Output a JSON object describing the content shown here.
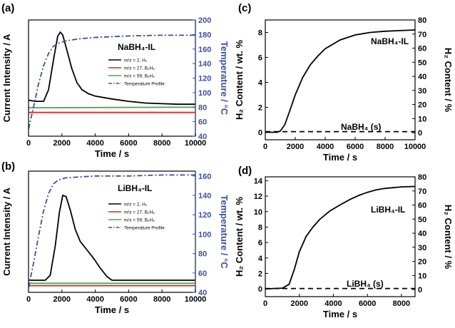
{
  "figure": {
    "background": "#ffffff",
    "axis_color": "#000000",
    "right_axis_color": "#3a4fa8"
  },
  "chart_data": [
    {
      "panel_label": "(a)",
      "type": "line",
      "title": "NaBH₄-IL",
      "xlabel": "Time / s",
      "ylabel": "Current Intensity / A",
      "y2label": "Temperature / °C",
      "xlim": [
        0,
        10000
      ],
      "xticks": [
        "0",
        "2000",
        "4000",
        "6000",
        "8000",
        "10000"
      ],
      "ylim": [
        0,
        1
      ],
      "y2lim": [
        40,
        200
      ],
      "y2ticks": [
        "40",
        "60",
        "80",
        "100",
        "120",
        "140",
        "160",
        "180",
        "200"
      ],
      "legend_position": "top-right",
      "series": [
        {
          "name": "m/z = 2, H₂",
          "color": "#000000",
          "dash": "solid",
          "axis": "left",
          "x": [
            0,
            400,
            900,
            1200,
            1500,
            1750,
            1900,
            2050,
            2300,
            2600,
            2900,
            3200,
            3600,
            4000,
            5000,
            6000,
            7000,
            8000,
            9000,
            10000
          ],
          "y": [
            0.31,
            0.3,
            0.3,
            0.4,
            0.66,
            0.86,
            0.895,
            0.87,
            0.74,
            0.58,
            0.46,
            0.4,
            0.365,
            0.345,
            0.32,
            0.3,
            0.285,
            0.28,
            0.275,
            0.275
          ]
        },
        {
          "name": "m/z = 27, B₂H₆",
          "color": "#e0201c",
          "dash": "solid",
          "axis": "left",
          "x": [
            0,
            10000
          ],
          "y": [
            0.205,
            0.205
          ]
        },
        {
          "name": "m/z = 59, B₅H₉",
          "color": "#3cb43c",
          "dash": "solid",
          "axis": "left",
          "x": [
            0,
            10000
          ],
          "y": [
            0.245,
            0.25
          ]
        },
        {
          "name": "Temperature Profile",
          "color": "#3a4fa8",
          "dash": "dashdot",
          "axis": "right",
          "x": [
            0,
            300,
            600,
            900,
            1200,
            1500,
            1800,
            2200,
            3000,
            4000,
            6000,
            8000,
            10000
          ],
          "y": [
            50,
            80,
            112,
            137,
            154,
            164,
            168,
            171,
            174,
            176,
            178,
            179,
            179
          ]
        }
      ]
    },
    {
      "panel_label": "(b)",
      "type": "line",
      "title": "LiBH₄-IL",
      "xlabel": "Time / s",
      "ylabel": "Current Intensity / A",
      "y2label": "Temperature / °C",
      "xlim": [
        0,
        10000
      ],
      "xticks": [
        "0",
        "2000",
        "4000",
        "6000",
        "8000",
        "10000"
      ],
      "ylim": [
        0,
        1
      ],
      "y2lim": [
        40,
        165
      ],
      "y2ticks": [
        "40",
        "60",
        "80",
        "100",
        "120",
        "140",
        "160"
      ],
      "legend_position": "top-right",
      "series": [
        {
          "name": "m/z = 2, H₂",
          "color": "#000000",
          "dash": "solid",
          "axis": "left",
          "x": [
            0,
            500,
            1000,
            1300,
            1600,
            1850,
            2050,
            2250,
            2500,
            2800,
            3100,
            3500,
            3900,
            4300,
            4700,
            5000,
            6000,
            7000,
            8000,
            10000
          ],
          "y": [
            0.1,
            0.1,
            0.1,
            0.14,
            0.38,
            0.66,
            0.8,
            0.79,
            0.68,
            0.52,
            0.42,
            0.35,
            0.28,
            0.2,
            0.13,
            0.1,
            0.1,
            0.1,
            0.1,
            0.1
          ]
        },
        {
          "name": "m/z = 27, B₂H₆",
          "color": "#e0201c",
          "dash": "solid",
          "axis": "left",
          "x": [
            0,
            10000
          ],
          "y": [
            0.055,
            0.055
          ]
        },
        {
          "name": "m/z = 59, B₅H₉",
          "color": "#3cb43c",
          "dash": "solid",
          "axis": "left",
          "x": [
            0,
            10000
          ],
          "y": [
            0.075,
            0.075
          ]
        },
        {
          "name": "Temperature Profile",
          "color": "#3a4fa8",
          "dash": "dashdot",
          "axis": "right",
          "x": [
            0,
            300,
            600,
            900,
            1200,
            1500,
            1800,
            2200,
            3000,
            4000,
            6000,
            8000,
            10000
          ],
          "y": [
            45,
            70,
            98,
            124,
            142,
            152,
            156,
            158,
            159,
            160,
            160,
            161,
            161
          ]
        }
      ]
    },
    {
      "panel_label": "(c)",
      "type": "line",
      "title": "NaBH₄-IL",
      "xlabel": "Time / s",
      "ylabel": "H₂ Content / wt. %",
      "y2label": "H₂ Content / %",
      "xlim": [
        0,
        10000
      ],
      "xticks": [
        "0",
        "2000",
        "4000",
        "6000",
        "8000",
        "10000"
      ],
      "ylim": [
        -0.6,
        9
      ],
      "yticks": [
        "0",
        "2",
        "4",
        "6",
        "8"
      ],
      "y2lim": [
        -5,
        80
      ],
      "y2ticks": [
        "0",
        "10",
        "20",
        "30",
        "40",
        "50",
        "60",
        "70",
        "80"
      ],
      "annotation": "NaBH₄ (s)",
      "series": [
        {
          "name": "NaBH₄-IL",
          "color": "#000000",
          "dash": "solid",
          "axis": "left",
          "x": [
            0,
            800,
            1000,
            1300,
            1600,
            2000,
            2500,
            3000,
            3500,
            4000,
            5000,
            6000,
            7000,
            8000,
            9000,
            10000
          ],
          "y": [
            0,
            0,
            0.1,
            0.6,
            1.6,
            3.0,
            4.4,
            5.4,
            6.1,
            6.7,
            7.4,
            7.8,
            8.0,
            8.1,
            8.15,
            8.2
          ]
        },
        {
          "name": "NaBH₄ (s)",
          "color": "#000000",
          "dash": "dashed",
          "axis": "left",
          "x": [
            0,
            10000
          ],
          "y": [
            0.05,
            0.05
          ]
        }
      ]
    },
    {
      "panel_label": "(d)",
      "type": "line",
      "title": "LiBH₄-IL",
      "xlabel": "Time / s",
      "ylabel": "H₂ Content / wt. %",
      "y2label": "H₂ Content / %",
      "xlim": [
        0,
        8800
      ],
      "xticks": [
        "0",
        "2000",
        "4000",
        "6000",
        "8000"
      ],
      "ylim": [
        -1,
        14.5
      ],
      "yticks": [
        "0",
        "2",
        "4",
        "6",
        "8",
        "10",
        "12",
        "14"
      ],
      "y2lim": [
        -5,
        80
      ],
      "y2ticks": [
        "0",
        "10",
        "20",
        "30",
        "40",
        "50",
        "60",
        "70",
        "80"
      ],
      "annotation": "LiBH₄ (s)",
      "series": [
        {
          "name": "LiBH₄-IL",
          "color": "#000000",
          "dash": "solid",
          "axis": "left",
          "x": [
            0,
            1000,
            1400,
            1700,
            2000,
            2400,
            2800,
            3200,
            3800,
            4500,
            5000,
            5500,
            6000,
            6500,
            7000,
            7500,
            8000,
            8800
          ],
          "y": [
            0,
            0.1,
            0.6,
            2.5,
            4.8,
            6.8,
            8.0,
            9.0,
            10.1,
            11.0,
            11.6,
            12.1,
            12.5,
            12.8,
            13.0,
            13.1,
            13.2,
            13.25
          ]
        },
        {
          "name": "LiBH₄ (s)",
          "color": "#000000",
          "dash": "dashed",
          "axis": "left",
          "x": [
            0,
            8800
          ],
          "y": [
            0.05,
            0.05
          ]
        }
      ]
    }
  ]
}
